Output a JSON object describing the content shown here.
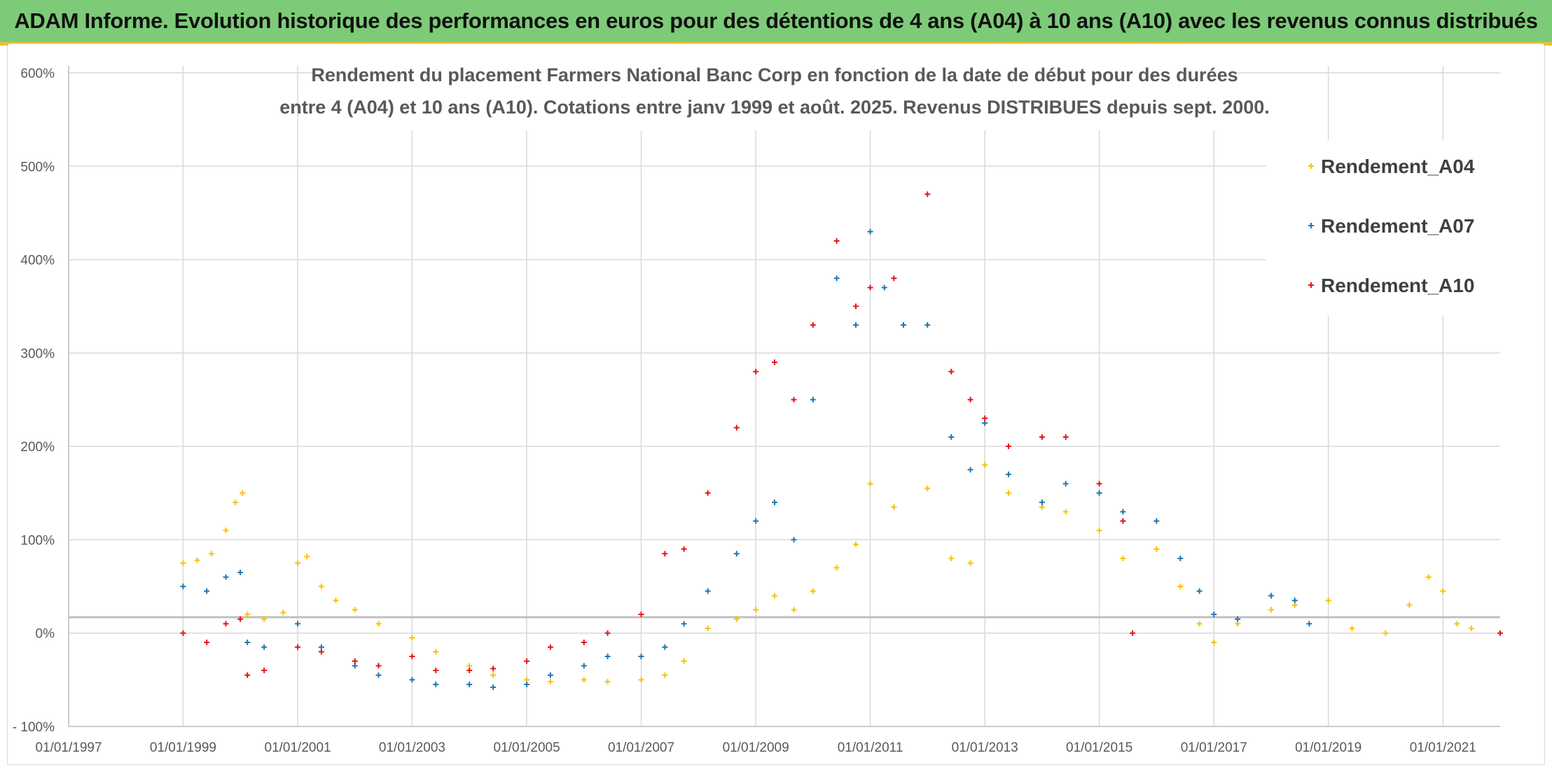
{
  "banner": {
    "title": "ADAM Informe. Evolution historique des performances en euros pour des détentions de 4 ans (A04) à 10 ans (A10) avec les revenus connus distribués"
  },
  "chart_data": {
    "type": "scatter",
    "title_lines": [
      "Rendement du placement Farmers National Banc Corp en fonction de la date de début pour des durées",
      "entre 4 (A04) et 10 ans (A10). Cotations entre janv 1999 et août. 2025. Revenus DISTRIBUES depuis sept. 2000."
    ],
    "xlabel": "",
    "ylabel": "",
    "x_range": [
      "1997-01-01",
      "2022-01-01"
    ],
    "ylim": [
      -100,
      600
    ],
    "y_ticks": [
      -100,
      0,
      100,
      200,
      300,
      400,
      500,
      600
    ],
    "y_tick_labels": [
      "- 100%",
      "0%",
      "100%",
      "200%",
      "300%",
      "400%",
      "500%",
      "600%"
    ],
    "x_ticks": [
      "1997-01-01",
      "1999-01-01",
      "2001-01-01",
      "2003-01-01",
      "2005-01-01",
      "2007-01-01",
      "2009-01-01",
      "2011-01-01",
      "2013-01-01",
      "2015-01-01",
      "2017-01-01",
      "2019-01-01",
      "2021-01-01"
    ],
    "x_tick_labels": [
      "01/01/1997",
      "01/01/1999",
      "01/01/2001",
      "01/01/2003",
      "01/01/2005",
      "01/01/2007",
      "01/01/2009",
      "01/01/2011",
      "01/01/2013",
      "01/01/2015",
      "01/01/2017",
      "01/01/2019",
      "01/01/2021"
    ],
    "grid": true,
    "legend": "right",
    "reference_line_y": 17,
    "series": [
      {
        "name": "Rendement_A04",
        "color": "#ffc000",
        "marker": "+",
        "points": [
          [
            "1999-01-01",
            75
          ],
          [
            "1999-04-01",
            78
          ],
          [
            "1999-07-01",
            85
          ],
          [
            "1999-10-01",
            110
          ],
          [
            "1999-12-01",
            140
          ],
          [
            "2000-01-15",
            150
          ],
          [
            "2000-02-15",
            20
          ],
          [
            "2000-06-01",
            15
          ],
          [
            "2000-10-01",
            22
          ],
          [
            "2001-01-01",
            75
          ],
          [
            "2001-03-01",
            82
          ],
          [
            "2001-06-01",
            50
          ],
          [
            "2001-09-01",
            35
          ],
          [
            "2002-01-01",
            25
          ],
          [
            "2002-06-01",
            10
          ],
          [
            "2003-01-01",
            -5
          ],
          [
            "2003-06-01",
            -20
          ],
          [
            "2004-01-01",
            -35
          ],
          [
            "2004-06-01",
            -45
          ],
          [
            "2005-01-01",
            -50
          ],
          [
            "2005-06-01",
            -52
          ],
          [
            "2006-01-01",
            -50
          ],
          [
            "2006-06-01",
            -52
          ],
          [
            "2007-01-01",
            -50
          ],
          [
            "2007-06-01",
            -45
          ],
          [
            "2007-10-01",
            -30
          ],
          [
            "2008-03-01",
            5
          ],
          [
            "2008-09-01",
            15
          ],
          [
            "2009-01-01",
            25
          ],
          [
            "2009-05-01",
            40
          ],
          [
            "2009-09-01",
            25
          ],
          [
            "2010-01-01",
            45
          ],
          [
            "2010-06-01",
            70
          ],
          [
            "2010-10-01",
            95
          ],
          [
            "2011-01-01",
            160
          ],
          [
            "2011-06-01",
            135
          ],
          [
            "2012-01-01",
            155
          ],
          [
            "2012-06-01",
            80
          ],
          [
            "2012-10-01",
            75
          ],
          [
            "2013-01-01",
            180
          ],
          [
            "2013-06-01",
            150
          ],
          [
            "2014-01-01",
            135
          ],
          [
            "2014-06-01",
            130
          ],
          [
            "2015-01-01",
            110
          ],
          [
            "2015-06-01",
            80
          ],
          [
            "2016-01-01",
            90
          ],
          [
            "2016-06-01",
            50
          ],
          [
            "2016-10-01",
            10
          ],
          [
            "2017-01-01",
            -10
          ],
          [
            "2017-06-01",
            10
          ],
          [
            "2018-01-01",
            25
          ],
          [
            "2018-06-01",
            30
          ],
          [
            "2019-01-01",
            35
          ],
          [
            "2019-06-01",
            5
          ],
          [
            "2020-01-01",
            0
          ],
          [
            "2020-06-01",
            30
          ],
          [
            "2020-10-01",
            60
          ],
          [
            "2021-01-01",
            45
          ],
          [
            "2021-04-01",
            10
          ],
          [
            "2021-07-01",
            5
          ]
        ]
      },
      {
        "name": "Rendement_A07",
        "color": "#1f77b4",
        "marker": "+",
        "points": [
          [
            "1999-01-01",
            50
          ],
          [
            "1999-06-01",
            45
          ],
          [
            "1999-10-01",
            60
          ],
          [
            "2000-01-01",
            65
          ],
          [
            "2000-02-15",
            -10
          ],
          [
            "2000-06-01",
            -15
          ],
          [
            "2001-01-01",
            10
          ],
          [
            "2001-06-01",
            -15
          ],
          [
            "2002-01-01",
            -35
          ],
          [
            "2002-06-01",
            -45
          ],
          [
            "2003-01-01",
            -50
          ],
          [
            "2003-06-01",
            -55
          ],
          [
            "2004-01-01",
            -55
          ],
          [
            "2004-06-01",
            -58
          ],
          [
            "2005-01-01",
            -55
          ],
          [
            "2005-06-01",
            -45
          ],
          [
            "2006-01-01",
            -35
          ],
          [
            "2006-06-01",
            -25
          ],
          [
            "2007-01-01",
            -25
          ],
          [
            "2007-06-01",
            -15
          ],
          [
            "2007-10-01",
            10
          ],
          [
            "2008-03-01",
            45
          ],
          [
            "2008-09-01",
            85
          ],
          [
            "2009-01-01",
            120
          ],
          [
            "2009-05-01",
            140
          ],
          [
            "2009-09-01",
            100
          ],
          [
            "2010-01-01",
            250
          ],
          [
            "2010-06-01",
            380
          ],
          [
            "2010-10-01",
            330
          ],
          [
            "2011-01-01",
            430
          ],
          [
            "2011-04-01",
            370
          ],
          [
            "2011-08-01",
            330
          ],
          [
            "2012-01-01",
            330
          ],
          [
            "2012-06-01",
            210
          ],
          [
            "2012-10-01",
            175
          ],
          [
            "2013-01-01",
            225
          ],
          [
            "2013-06-01",
            170
          ],
          [
            "2014-01-01",
            140
          ],
          [
            "2014-06-01",
            160
          ],
          [
            "2015-01-01",
            150
          ],
          [
            "2015-06-01",
            130
          ],
          [
            "2016-01-01",
            120
          ],
          [
            "2016-06-01",
            80
          ],
          [
            "2016-10-01",
            45
          ],
          [
            "2017-01-01",
            20
          ],
          [
            "2017-06-01",
            15
          ],
          [
            "2018-01-01",
            40
          ],
          [
            "2018-06-01",
            35
          ],
          [
            "2018-09-01",
            10
          ]
        ]
      },
      {
        "name": "Rendement_A10",
        "color": "#e8121b",
        "marker": "+",
        "points": [
          [
            "1999-01-01",
            0
          ],
          [
            "1999-06-01",
            -10
          ],
          [
            "1999-10-01",
            10
          ],
          [
            "2000-01-01",
            15
          ],
          [
            "2000-02-15",
            -45
          ],
          [
            "2000-06-01",
            -40
          ],
          [
            "2001-01-01",
            -15
          ],
          [
            "2001-06-01",
            -20
          ],
          [
            "2002-01-01",
            -30
          ],
          [
            "2002-06-01",
            -35
          ],
          [
            "2003-01-01",
            -25
          ],
          [
            "2003-06-01",
            -40
          ],
          [
            "2004-01-01",
            -40
          ],
          [
            "2004-06-01",
            -38
          ],
          [
            "2005-01-01",
            -30
          ],
          [
            "2005-06-01",
            -15
          ],
          [
            "2006-01-01",
            -10
          ],
          [
            "2006-06-01",
            0
          ],
          [
            "2007-01-01",
            20
          ],
          [
            "2007-06-01",
            85
          ],
          [
            "2007-10-01",
            90
          ],
          [
            "2008-03-01",
            150
          ],
          [
            "2008-09-01",
            220
          ],
          [
            "2009-01-01",
            280
          ],
          [
            "2009-05-01",
            290
          ],
          [
            "2009-09-01",
            250
          ],
          [
            "2010-01-01",
            330
          ],
          [
            "2010-06-01",
            420
          ],
          [
            "2010-10-01",
            350
          ],
          [
            "2011-01-01",
            370
          ],
          [
            "2011-06-01",
            380
          ],
          [
            "2012-01-01",
            470
          ],
          [
            "2012-06-01",
            280
          ],
          [
            "2012-10-01",
            250
          ],
          [
            "2013-01-01",
            230
          ],
          [
            "2013-06-01",
            200
          ],
          [
            "2014-01-01",
            210
          ],
          [
            "2014-06-01",
            210
          ],
          [
            "2015-01-01",
            160
          ],
          [
            "2015-06-01",
            120
          ],
          [
            "2015-08-01",
            0
          ],
          [
            "2022-01-01",
            0
          ]
        ]
      }
    ]
  }
}
